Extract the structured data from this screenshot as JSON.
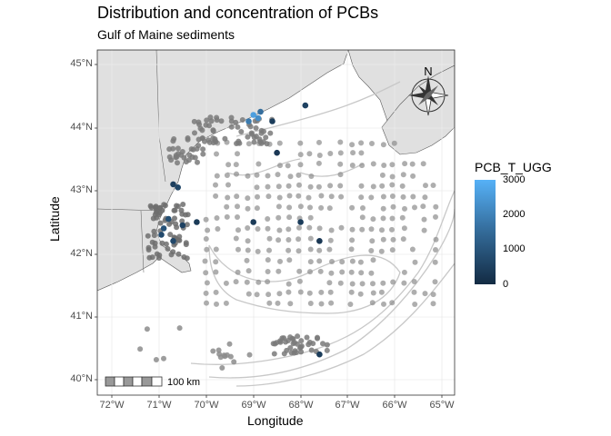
{
  "title": "Distribution and concentration of PCBs",
  "subtitle": "Gulf of Maine sediments",
  "xlabel": "Longitude",
  "ylabel": "Latitude",
  "x_ticks": [
    "72°W",
    "71°W",
    "70°W",
    "69°W",
    "68°W",
    "67°W",
    "66°W",
    "65°W"
  ],
  "y_ticks": [
    "45°N",
    "44°N",
    "43°N",
    "42°N",
    "41°N",
    "40°N"
  ],
  "legend": {
    "title": "PCB_T_UGG",
    "labels": [
      "3000",
      "2000",
      "1000",
      "0"
    ],
    "colors": {
      "high": "#56b1f7",
      "low": "#132b43"
    }
  },
  "north_arrow_label": "N",
  "scale_bar_label": "100 km",
  "colors": {
    "land": "#e0e0e0",
    "water": "#ffffff",
    "isobath": "#c8c8c8",
    "low_point": "#8c8c8c"
  },
  "chart_data": {
    "type": "scatter",
    "title": "Distribution and concentration of PCBs",
    "subtitle": "Gulf of Maine sediments",
    "xlabel": "Longitude",
    "ylabel": "Latitude",
    "xlim": [
      -72.3,
      -64.7
    ],
    "ylim": [
      39.8,
      45.2
    ],
    "color_variable": "PCB_T_UGG",
    "color_range": [
      0,
      3000
    ],
    "legend_position": "right",
    "grid": true,
    "high_points": [
      {
        "lon": -69.0,
        "lat": 44.2,
        "value": 2600
      },
      {
        "lon": -68.9,
        "lat": 44.15,
        "value": 2200
      },
      {
        "lon": -69.1,
        "lat": 44.1,
        "value": 1800
      },
      {
        "lon": -68.85,
        "lat": 44.25,
        "value": 1500
      },
      {
        "lon": -68.6,
        "lat": 44.1,
        "value": 400
      },
      {
        "lon": -67.9,
        "lat": 44.35,
        "value": 500
      },
      {
        "lon": -70.6,
        "lat": 43.05,
        "value": 600
      },
      {
        "lon": -70.7,
        "lat": 43.1,
        "value": 450
      },
      {
        "lon": -70.8,
        "lat": 42.55,
        "value": 800
      },
      {
        "lon": -70.95,
        "lat": 42.3,
        "value": 700
      },
      {
        "lon": -70.7,
        "lat": 42.2,
        "value": 650
      },
      {
        "lon": -70.9,
        "lat": 42.4,
        "value": 900
      },
      {
        "lon": -70.5,
        "lat": 42.45,
        "value": 500
      },
      {
        "lon": -68.0,
        "lat": 42.5,
        "value": 400
      },
      {
        "lon": -67.6,
        "lat": 42.2,
        "value": 300
      },
      {
        "lon": -69.0,
        "lat": 42.5,
        "value": 350
      },
      {
        "lon": -67.6,
        "lat": 40.4,
        "value": 400
      },
      {
        "lon": -68.5,
        "lat": 43.6,
        "value": 300
      },
      {
        "lon": -70.2,
        "lat": 42.5,
        "value": 350
      }
    ]
  }
}
